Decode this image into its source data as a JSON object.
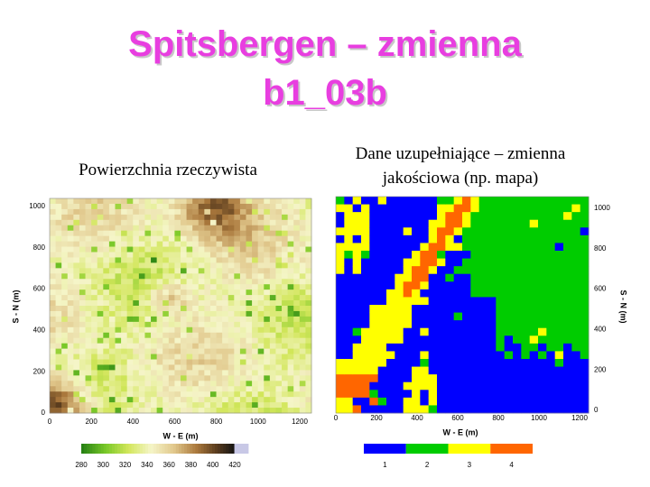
{
  "title_lines": [
    "Spitsbergen – zmienna",
    "b1_03b"
  ],
  "left_panel": {
    "caption_lines": [
      "Powierzchnia rzeczywista"
    ],
    "y_axis_label": "S - N (m)",
    "x_axis_label": "W - E (m)",
    "yticks": [
      "0",
      "200",
      "400",
      "600",
      "800",
      "1000"
    ],
    "xticks": [
      "0",
      "200",
      "400",
      "600",
      "800",
      "1000",
      "1200"
    ],
    "colorbar_labels": [
      "280",
      "300",
      "320",
      "340",
      "360",
      "380",
      "400",
      "420"
    ]
  },
  "right_panel": {
    "caption_lines": [
      "Dane uzupełniające – zmienna",
      "jakościowa (np. mapa)"
    ],
    "y_axis_label": "S - N (m)",
    "x_axis_label": "W - E (m)",
    "yticks": [
      "0",
      "200",
      "400",
      "600",
      "800",
      "1000"
    ],
    "xticks": [
      "0",
      "200",
      "400",
      "600",
      "800",
      "1000",
      "1200"
    ],
    "legend_labels": [
      "1",
      "2",
      "3",
      "4"
    ]
  }
}
